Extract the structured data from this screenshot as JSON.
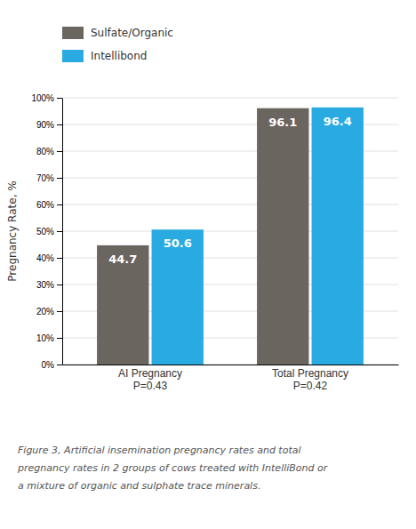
{
  "chart_data": {
    "type": "bar",
    "categories": [
      "AI Pregnancy\nP=0.43",
      "Total Pregnancy\nP=0.42"
    ],
    "series": [
      {
        "name": "Sulfate/Organic",
        "color": "#6b6560",
        "values": [
          44.7,
          96.1
        ]
      },
      {
        "name": "Intellibond",
        "color": "#29abe2",
        "values": [
          50.6,
          96.4
        ]
      }
    ],
    "ylabel": "Pregnancy Rate, %",
    "ylim": [
      0,
      100
    ],
    "yticks": [
      {
        "value": 0,
        "label": "0%"
      },
      {
        "value": 10,
        "label": "10%"
      },
      {
        "value": 20,
        "label": "20%"
      },
      {
        "value": 30,
        "label": "30%"
      },
      {
        "value": 40,
        "label": "40%"
      },
      {
        "value": 50,
        "label": "50%"
      },
      {
        "value": 60,
        "label": "60%"
      },
      {
        "value": 70,
        "label": "70%"
      },
      {
        "value": 80,
        "label": "80%"
      },
      {
        "value": 90,
        "label": "90%"
      },
      {
        "value": 100,
        "label": "100%"
      }
    ],
    "grid": true,
    "data_labels": true,
    "legend": "top-left",
    "annotations": [
      "Figure 3, Artificial insemination pregnancy rates and total",
      "pregnancy rates in 2 groups of cows treated with IntelliBond or",
      "a mixture of organic and sulphate trace minerals."
    ]
  }
}
